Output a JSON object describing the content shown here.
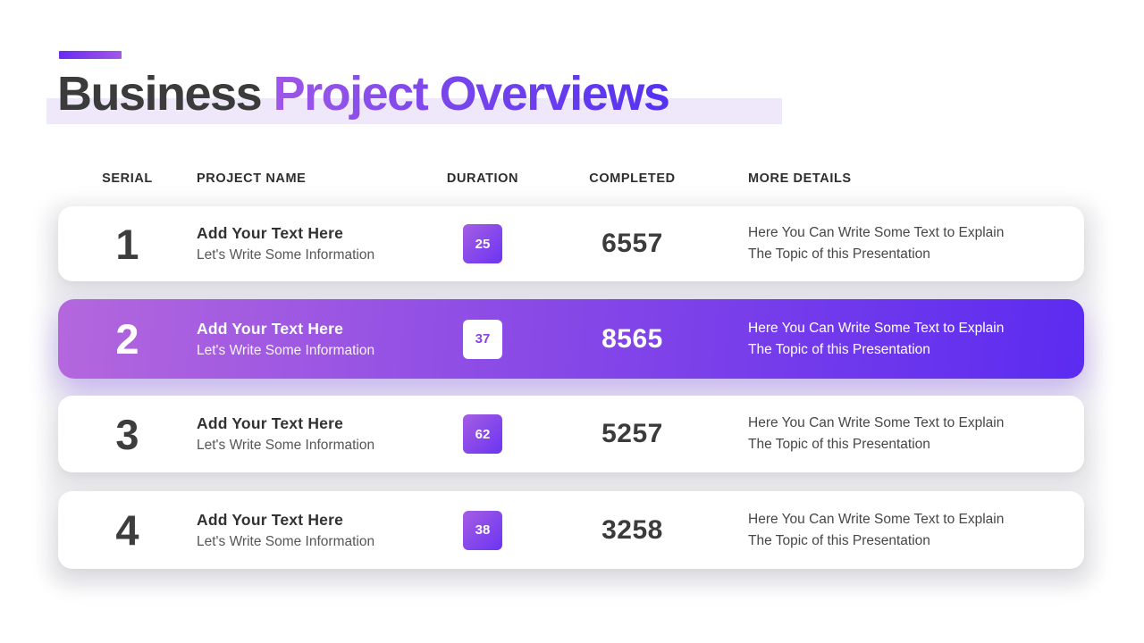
{
  "title": {
    "part_dark": "Business",
    "part_gradient": " Project Overviews"
  },
  "table": {
    "headers": [
      "SERIAL",
      "PROJECT NAME",
      "DURATION",
      "COMPLETED",
      "MORE DETAILS"
    ],
    "rows": [
      {
        "serial": "1",
        "project_name": "Add Your Text Here",
        "project_subtitle": "Let's Write Some Information",
        "duration": "25",
        "completed": "6557",
        "details_line1": "Here You Can Write Some Text to Explain",
        "details_line2": "The Topic of this Presentation",
        "highlighted": false
      },
      {
        "serial": "2",
        "project_name": "Add Your Text Here",
        "project_subtitle": "Let's Write Some Information",
        "duration": "37",
        "completed": "8565",
        "details_line1": "Here You Can Write Some Text to Explain",
        "details_line2": "The Topic of this Presentation",
        "highlighted": true
      },
      {
        "serial": "3",
        "project_name": "Add Your Text Here",
        "project_subtitle": "Let's Write Some Information",
        "duration": "62",
        "completed": "5257",
        "details_line1": "Here You Can Write Some Text to Explain",
        "details_line2": "The Topic of this Presentation",
        "highlighted": false
      },
      {
        "serial": "4",
        "project_name": "Add Your Text Here",
        "project_subtitle": "Let's Write Some Information",
        "duration": "38",
        "completed": "3258",
        "details_line1": "Here You Can Write Some Text to Explain",
        "details_line2": "The Topic of this Presentation",
        "highlighted": false
      }
    ]
  },
  "colors": {
    "title_dark": "#3b3b3b",
    "title_gradient_start": "#a158e6",
    "title_gradient_end": "#5531f2",
    "title_highlight_bar": "#efe8fb",
    "accent_bar_start": "#6a2bf2",
    "accent_bar_end": "#a158e6",
    "highlight_row_start": "#b467dd",
    "highlight_row_end": "#5b2bf0",
    "badge_gradient_start": "#a55ee3",
    "badge_gradient_end": "#6b34f2",
    "badge_text_on_white": "#8a3ee8",
    "body_text": "#474747"
  }
}
